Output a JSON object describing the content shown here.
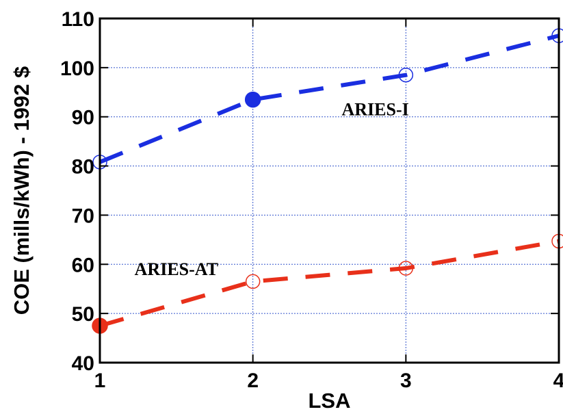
{
  "chart_data": {
    "type": "line",
    "title": "",
    "xlabel": "LSA",
    "ylabel": "COE  (mills/kWh) - 1992 $",
    "xlim": [
      1,
      4
    ],
    "ylim": [
      40,
      110
    ],
    "xticks": [
      1,
      2,
      3,
      4
    ],
    "yticks": [
      40,
      50,
      60,
      70,
      80,
      90,
      100,
      110
    ],
    "grid": true,
    "series": [
      {
        "name": "ARIES-I",
        "color": "#1a2ee0",
        "x": [
          1,
          2,
          3,
          4
        ],
        "y": [
          80.8,
          93.5,
          98.5,
          106.5
        ],
        "filled_marker_index": 1,
        "label_at": [
          2.8,
          90.3
        ]
      },
      {
        "name": "ARIES-AT",
        "color": "#e8301a",
        "x": [
          1,
          2,
          3,
          4
        ],
        "y": [
          47.5,
          56.5,
          59.2,
          64.7
        ],
        "filled_marker_index": 0,
        "label_at": [
          1.5,
          57.8
        ]
      }
    ]
  }
}
